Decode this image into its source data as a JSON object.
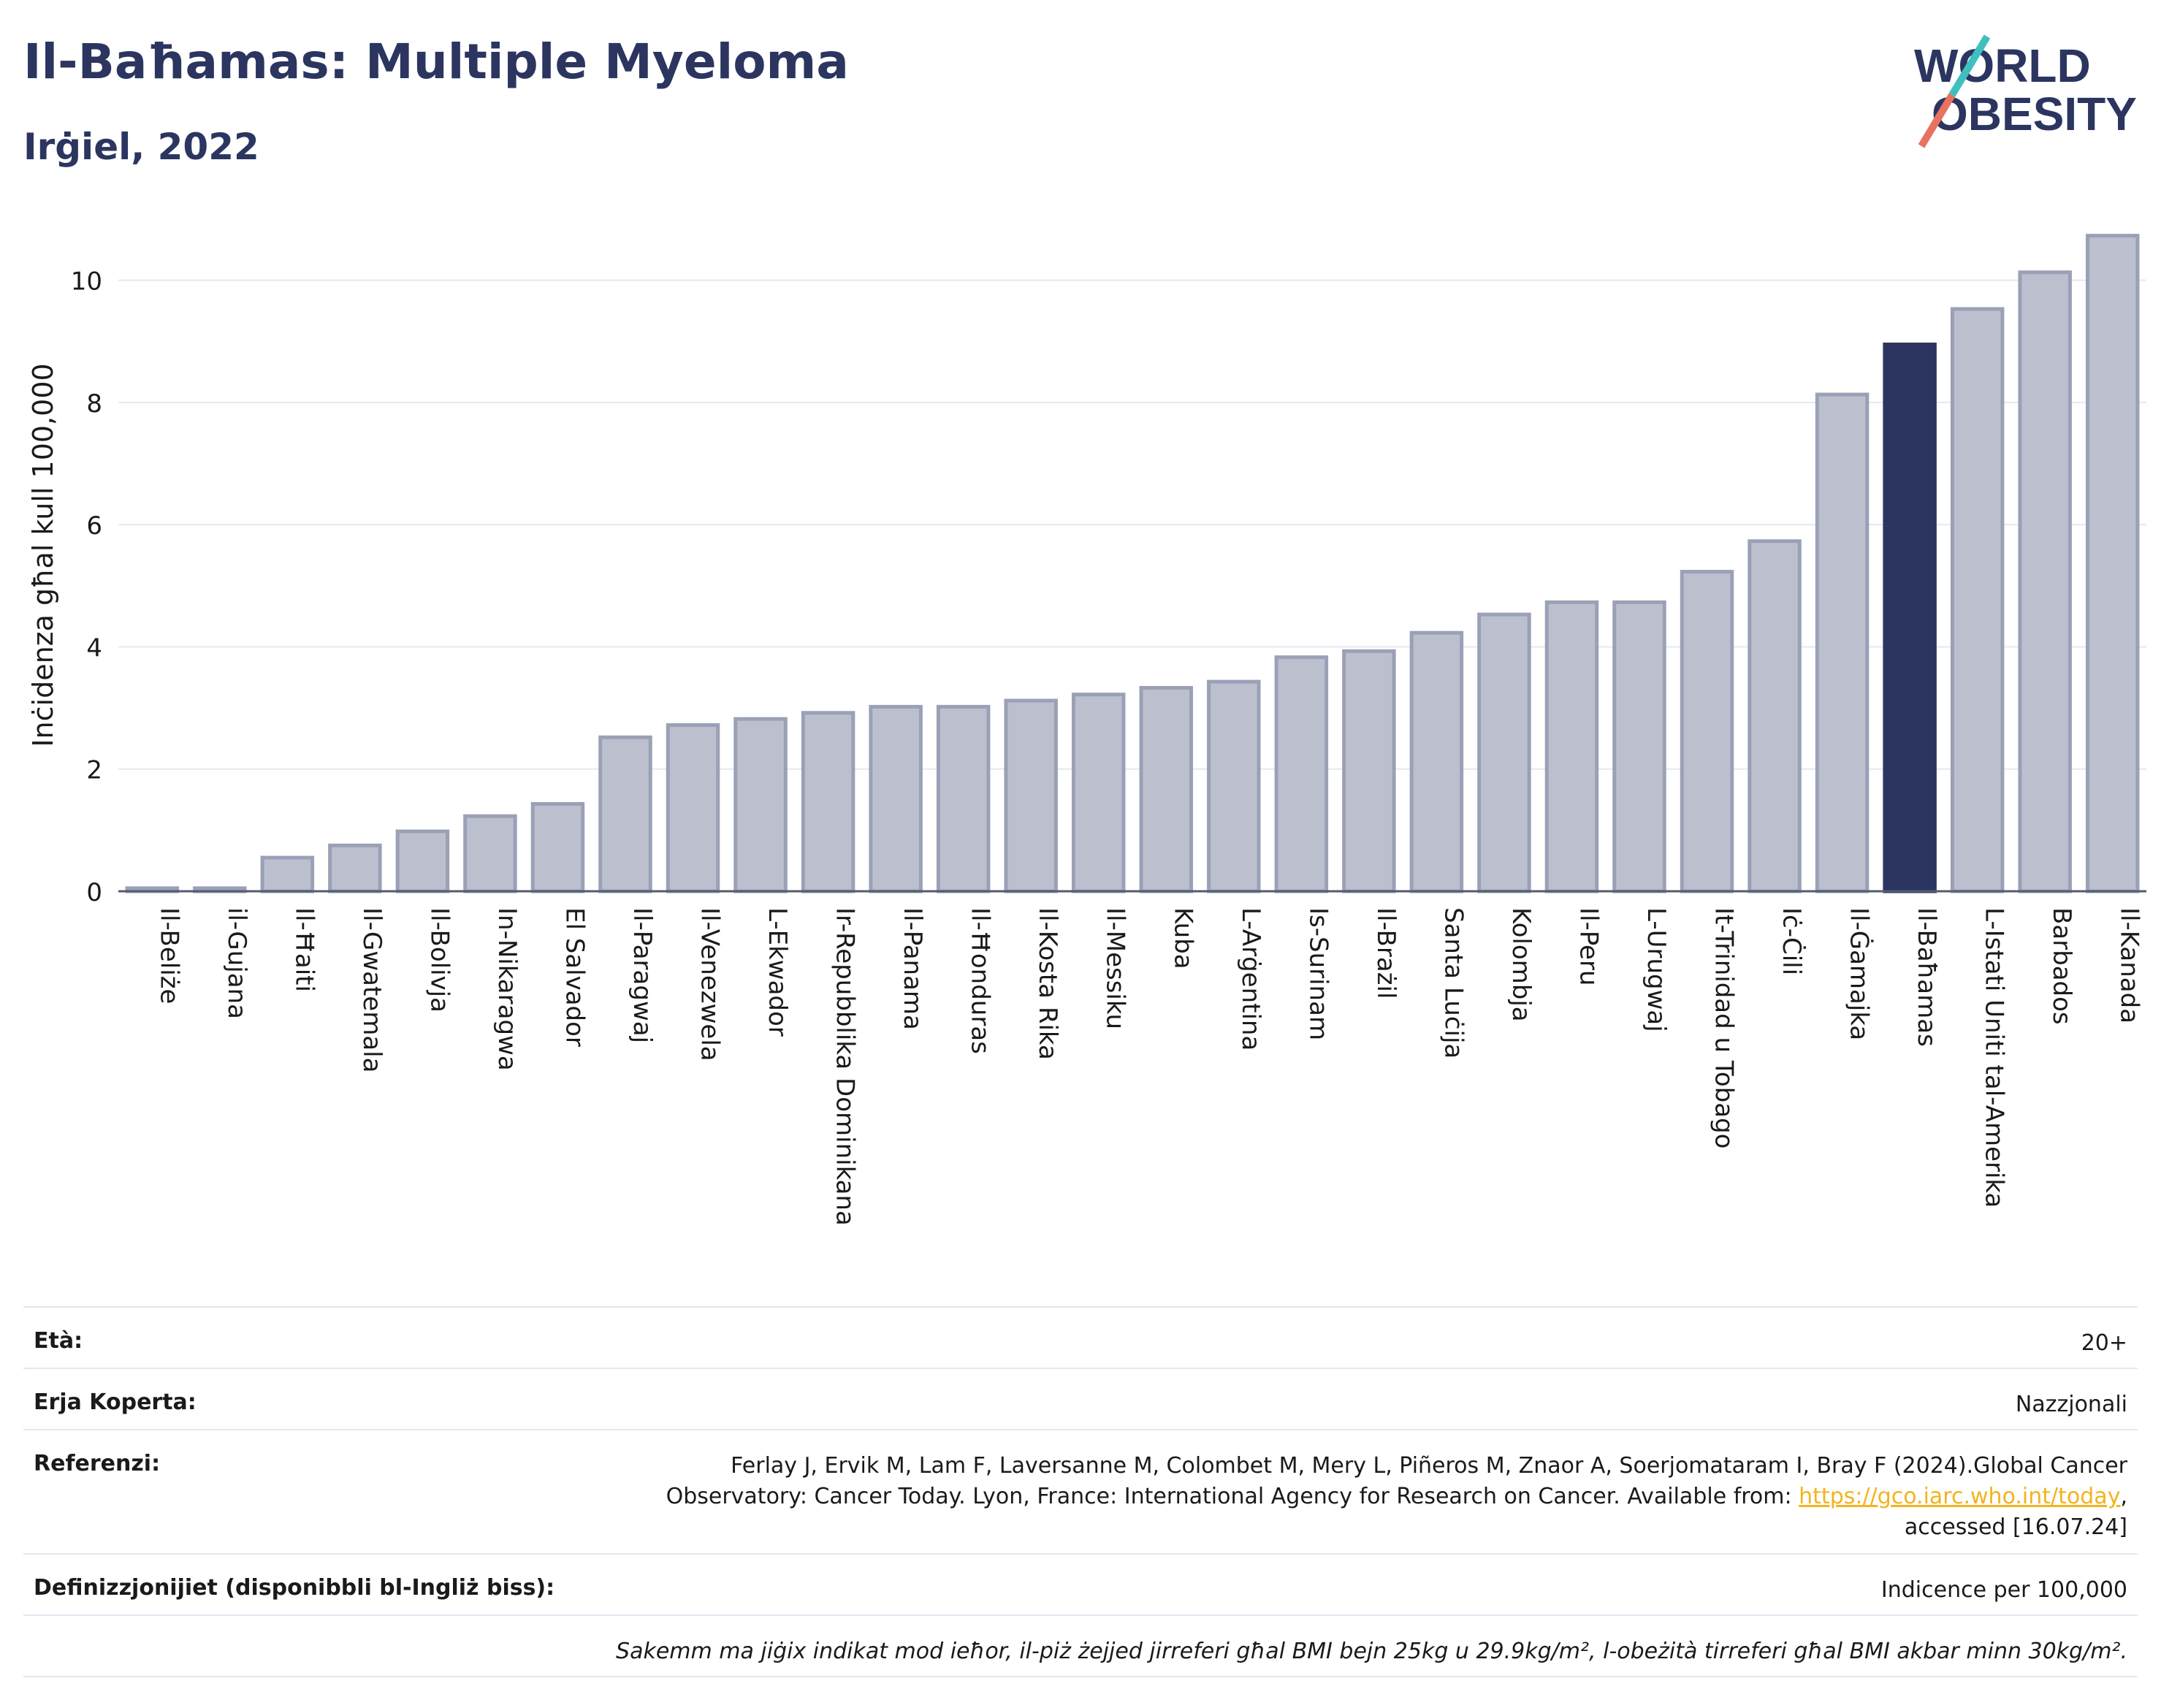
{
  "header": {
    "title": "Il-Baħamas: Multiple Myeloma",
    "subtitle": "Irġiel, 2022"
  },
  "logo": {
    "line1": "WORLD",
    "line2": "OBESITY"
  },
  "chart_data": {
    "type": "bar",
    "ylabel": "Inċidenza għal kull 100,000",
    "ylim": [
      0,
      11
    ],
    "yticks": [
      0,
      2,
      4,
      6,
      8,
      10
    ],
    "grid": true,
    "categories": [
      "Il-Beliże",
      "il-Gujana",
      "Il-Ħaiti",
      "Il-Gwatemala",
      "Il-Bolivja",
      "In-Nikaragwa",
      "El Salvador",
      "Il-Paragwaj",
      "Il-Venezwela",
      "L-Ekwador",
      "Ir-Repubblika Dominikana",
      "Il-Panama",
      "Il-Ħonduras",
      "Il-Kosta Rika",
      "Il-Messiku",
      "Kuba",
      "L-Arġentina",
      "Is-Surinam",
      "Il-Brażil",
      "Santa Luċija",
      "Kolombja",
      "Il-Peru",
      "L-Urugwaj",
      "It-Trinidad u Tobago",
      "Iċ-Ċili",
      "Il-Ġamajka",
      "Il-Baħamas",
      "L-Istati Uniti tal-Amerika",
      "Barbados",
      "Il-Kanada"
    ],
    "values": [
      0.05,
      0.05,
      0.55,
      0.75,
      0.98,
      1.23,
      1.43,
      2.52,
      2.72,
      2.82,
      2.92,
      3.02,
      3.02,
      3.12,
      3.22,
      3.33,
      3.43,
      3.83,
      3.93,
      4.23,
      4.53,
      4.73,
      4.73,
      5.23,
      5.73,
      8.13,
      8.95,
      9.53,
      10.13,
      10.73
    ],
    "highlight": "Il-Baħamas",
    "colors": {
      "bar": "#bcc0ce",
      "bar_border": "#9aa0b6",
      "highlight": "#2b3560"
    }
  },
  "info": {
    "age_label": "Età:",
    "age_value": "20+",
    "area_label": "Erja Koperta:",
    "area_value": "Nazzjonali",
    "ref_label": "Referenzi:",
    "ref_line1": "Ferlay J, Ervik M, Lam F, Laversanne M, Colombet M, Mery L, Piñeros M, Znaor A, Soerjomataram I, Bray F (2024).Global Cancer",
    "ref_line2": "Observatory: Cancer Today. Lyon, France: International Agency for Research on Cancer. Available from: ",
    "ref_link": "https://gco.iarc.who.int/today",
    "ref_line3": "accessed [16.07.24]",
    "def_label": "Definizzjonijiet (disponibbli bl-Ingliż biss):",
    "def_value": "Indicence per 100,000",
    "note": "Sakemm ma jiġix indikat mod ieħor, il-piż żejjed jirreferi għal BMI bejn 25kg u 29.9kg/m², l-obeżità tirreferi għal BMI akbar minn 30kg/m²."
  }
}
